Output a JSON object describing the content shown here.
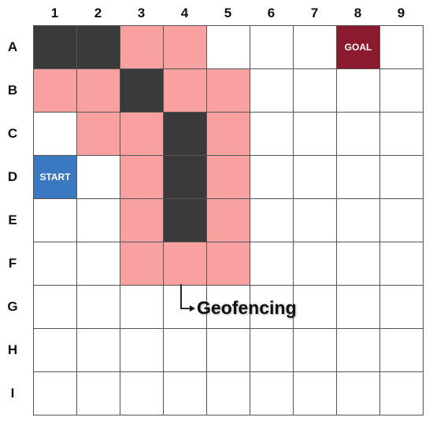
{
  "columns": [
    "1",
    "2",
    "3",
    "4",
    "5",
    "6",
    "7",
    "8",
    "9"
  ],
  "rows": [
    "A",
    "B",
    "C",
    "D",
    "E",
    "F",
    "G",
    "H",
    "I"
  ],
  "colors": {
    "free": "#ffffff",
    "obstacle": "#3a3a3a",
    "geofence": "#f9a0a0",
    "start": "#3a78c2",
    "goal": "#8b1a2e",
    "grid_line": "#555555"
  },
  "grid": [
    [
      "obstacle",
      "obstacle",
      "geofence",
      "geofence",
      "free",
      "free",
      "free",
      "goal",
      "free"
    ],
    [
      "geofence",
      "geofence",
      "obstacle",
      "geofence",
      "geofence",
      "free",
      "free",
      "free",
      "free"
    ],
    [
      "free",
      "geofence",
      "geofence",
      "obstacle",
      "geofence",
      "free",
      "free",
      "free",
      "free"
    ],
    [
      "start",
      "free",
      "geofence",
      "obstacle",
      "geofence",
      "free",
      "free",
      "free",
      "free"
    ],
    [
      "free",
      "free",
      "geofence",
      "obstacle",
      "geofence",
      "free",
      "free",
      "free",
      "free"
    ],
    [
      "free",
      "free",
      "geofence",
      "geofence",
      "geofence",
      "free",
      "free",
      "free",
      "free"
    ],
    [
      "free",
      "free",
      "free",
      "free",
      "free",
      "free",
      "free",
      "free",
      "free"
    ],
    [
      "free",
      "free",
      "free",
      "free",
      "free",
      "free",
      "free",
      "free",
      "free"
    ],
    [
      "free",
      "free",
      "free",
      "free",
      "free",
      "free",
      "free",
      "free",
      "free"
    ]
  ],
  "cell_labels": {
    "start": "START",
    "goal": "GOAL"
  },
  "annotation": {
    "text": "Geofencing"
  }
}
